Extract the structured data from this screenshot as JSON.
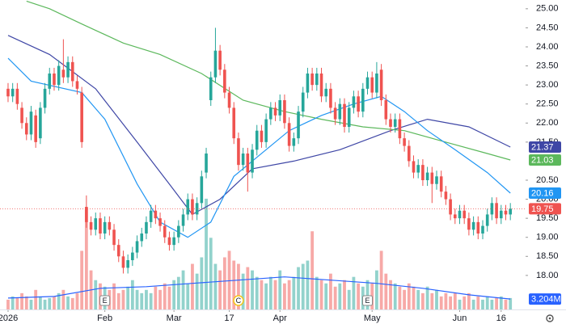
{
  "chart_data": {
    "type": "candlestick",
    "xlim": [
      -1.75,
      112.3
    ],
    "ylim": [
      17.17,
      25.23
    ],
    "volume_lim": [
      0,
      95
    ],
    "up_color": "#26a69a",
    "down_color": "#ef5350",
    "xticks": [
      {
        "value": 0,
        "label": "2026"
      },
      {
        "value": 21,
        "label": "Feb"
      },
      {
        "value": 36,
        "label": "Mar"
      },
      {
        "value": 48,
        "label": "17"
      },
      {
        "value": 59,
        "label": "Apr"
      },
      {
        "value": 79,
        "label": "May"
      },
      {
        "value": 98,
        "label": "Jun"
      },
      {
        "value": 107,
        "label": "16"
      }
    ],
    "yticks": [
      {
        "value": 18,
        "label": "18.00"
      },
      {
        "value": 18.5,
        "label": "18.50"
      },
      {
        "value": 19,
        "label": "19.00"
      },
      {
        "value": 19.5,
        "label": "19.50"
      },
      {
        "value": 20,
        "label": "20.00"
      },
      {
        "value": 20.5,
        "label": "20.50"
      },
      {
        "value": 21.5,
        "label": "21.50"
      },
      {
        "value": 22,
        "label": "22.00"
      },
      {
        "value": 22.5,
        "label": "22.50"
      },
      {
        "value": 23,
        "label": "23.00"
      },
      {
        "value": 23.5,
        "label": "23.50"
      },
      {
        "value": 24,
        "label": "24.00"
      },
      {
        "value": 24.5,
        "label": "24.50"
      },
      {
        "value": 25,
        "label": "25.00"
      }
    ],
    "open": [
      22.9,
      22.7,
      22.9,
      22.4,
      22.0,
      21.7,
      22.2,
      21.6,
      22.4,
      22.9,
      23.3,
      23.0,
      23.4,
      23.2,
      23.6,
      23.1,
      22.8,
      19.8,
      19.4,
      19.2,
      19.5,
      19.1,
      19.4,
      19.2,
      18.8,
      18.5,
      18.2,
      18.4,
      18.6,
      18.9,
      19.1,
      19.4,
      19.7,
      19.5,
      19.3,
      19.0,
      18.8,
      19.0,
      19.3,
      19.6,
      20.0,
      19.6,
      19.9,
      20.7,
      22.6,
      23.2,
      23.9,
      23.4,
      22.8,
      22.4,
      21.6,
      20.9,
      21.2,
      20.7,
      21.3,
      21.8,
      21.5,
      22.1,
      22.4,
      22.2,
      22.6,
      22.0,
      21.4,
      21.6,
      22.3,
      22.8,
      23.3,
      23.0,
      23.3,
      22.7,
      22.9,
      22.4,
      22.1,
      22.5,
      21.9,
      22.4,
      22.7,
      22.3,
      22.9,
      23.2,
      22.8,
      23.4,
      22.6,
      22.1,
      21.9,
      22.1,
      21.6,
      21.4,
      21.0,
      20.7,
      20.9,
      20.5,
      20.7,
      20.4,
      20.6,
      20.2,
      20.0,
      19.6,
      19.5,
      19.7,
      19.5,
      19.2,
      19.4,
      19.1,
      19.3,
      19.6,
      19.9,
      19.5,
      19.7,
      19.6
    ],
    "high": [
      23.05,
      23.05,
      23.05,
      22.55,
      22.15,
      22.45,
      22.35,
      22.55,
      23.05,
      23.45,
      23.45,
      23.65,
      24.2,
      23.75,
      23.75,
      23.25,
      22.95,
      20.1,
      19.55,
      19.65,
      19.65,
      19.55,
      19.55,
      19.35,
      18.95,
      18.65,
      18.55,
      18.75,
      19.05,
      19.25,
      19.55,
      19.85,
      19.85,
      19.65,
      19.45,
      19.15,
      19.15,
      19.45,
      19.75,
      20.15,
      20.15,
      20.05,
      20.75,
      21.35,
      23.35,
      24.5,
      24.05,
      23.55,
      22.95,
      22.55,
      21.75,
      21.35,
      21.35,
      21.45,
      21.95,
      21.95,
      22.25,
      22.55,
      22.55,
      22.75,
      22.75,
      22.15,
      21.75,
      22.45,
      22.95,
      23.45,
      23.45,
      23.45,
      23.45,
      23.05,
      23.05,
      22.55,
      22.65,
      22.65,
      22.55,
      22.85,
      22.85,
      23.05,
      23.35,
      23.35,
      23.6,
      23.55,
      22.75,
      22.25,
      22.25,
      22.25,
      21.75,
      21.55,
      21.15,
      21.05,
      21.05,
      20.85,
      20.85,
      20.75,
      20.75,
      20.35,
      20.15,
      19.75,
      19.85,
      19.85,
      19.65,
      19.55,
      19.55,
      19.45,
      19.75,
      20.05,
      20.05,
      19.85,
      19.85,
      19.9
    ],
    "low": [
      22.55,
      22.55,
      22.35,
      21.85,
      21.55,
      21.55,
      21.35,
      21.45,
      22.25,
      22.75,
      22.85,
      22.85,
      23.05,
      23.05,
      22.95,
      22.75,
      21.35,
      19.25,
      19.05,
      19.05,
      18.95,
      18.95,
      19.05,
      18.65,
      18.35,
      18.05,
      18.05,
      18.25,
      18.45,
      18.75,
      18.95,
      19.25,
      19.35,
      19.15,
      18.85,
      18.65,
      18.65,
      18.85,
      19.15,
      19.45,
      19.45,
      19.45,
      19.75,
      20.55,
      22.45,
      23.05,
      23.25,
      22.65,
      22.25,
      21.45,
      20.75,
      20.75,
      20.2,
      20.55,
      21.15,
      21.35,
      21.35,
      21.95,
      22.05,
      22.05,
      21.85,
      21.25,
      21.25,
      21.45,
      22.15,
      22.65,
      22.85,
      22.85,
      22.55,
      22.55,
      22.25,
      21.95,
      21.95,
      21.75,
      21.75,
      22.25,
      22.15,
      22.15,
      22.75,
      22.65,
      22.65,
      22.45,
      21.95,
      21.75,
      21.75,
      21.45,
      21.25,
      20.85,
      20.55,
      20.55,
      20.35,
      20.35,
      19.9,
      20.25,
      20.05,
      19.85,
      19.45,
      19.35,
      19.35,
      19.35,
      19.05,
      19.05,
      18.95,
      18.95,
      19.15,
      19.45,
      19.35,
      19.35,
      19.45,
      19.45
    ],
    "close": [
      22.7,
      22.9,
      22.5,
      22.0,
      21.7,
      22.3,
      21.5,
      22.4,
      22.9,
      23.3,
      23.0,
      23.5,
      23.2,
      23.6,
      23.1,
      22.9,
      21.5,
      19.4,
      19.2,
      19.5,
      19.1,
      19.4,
      19.2,
      18.8,
      18.5,
      18.2,
      18.4,
      18.6,
      18.9,
      19.1,
      19.4,
      19.7,
      19.5,
      19.3,
      19.0,
      18.8,
      19.0,
      19.3,
      19.6,
      20.0,
      19.6,
      19.9,
      20.6,
      21.2,
      23.2,
      23.9,
      23.4,
      22.8,
      22.4,
      21.6,
      20.9,
      21.2,
      20.7,
      21.3,
      21.8,
      21.5,
      22.1,
      22.4,
      22.2,
      22.6,
      22.0,
      21.4,
      21.6,
      22.3,
      22.8,
      23.3,
      23.0,
      23.3,
      22.7,
      22.9,
      22.4,
      22.1,
      22.5,
      21.9,
      22.4,
      22.7,
      22.3,
      22.9,
      23.2,
      22.8,
      23.3,
      22.6,
      22.1,
      21.9,
      22.1,
      21.6,
      21.4,
      21.0,
      20.7,
      20.9,
      20.5,
      20.7,
      20.4,
      20.6,
      20.2,
      20.0,
      19.6,
      19.5,
      19.7,
      19.5,
      19.2,
      19.4,
      19.1,
      19.3,
      19.6,
      19.9,
      19.5,
      19.7,
      19.6,
      19.75
    ],
    "close_label": "19.75",
    "volume": [
      3,
      4,
      3.5,
      5,
      4,
      3,
      6,
      4,
      3,
      3.5,
      4,
      5,
      6,
      4,
      3.5,
      5,
      18,
      31,
      12,
      9,
      8,
      7,
      6,
      8,
      5,
      6,
      7,
      9,
      6,
      5,
      6,
      5,
      7,
      6,
      8,
      7,
      9,
      10,
      12,
      8,
      14,
      11,
      16,
      34,
      22,
      14,
      12,
      16,
      18,
      15,
      14,
      11,
      13,
      12,
      10,
      9,
      8,
      10,
      9,
      12,
      8,
      9,
      10,
      13,
      14,
      15,
      24,
      10,
      9,
      8,
      11,
      7,
      8,
      9,
      6,
      10,
      8,
      7,
      9,
      8,
      12,
      18,
      11,
      9,
      8,
      7,
      6,
      8,
      7,
      6,
      5,
      7,
      5,
      6,
      4,
      5,
      4,
      5,
      3,
      4,
      5,
      3,
      4,
      3,
      4,
      3,
      3.5,
      4,
      3,
      3.5
    ],
    "series": [
      {
        "color": "#3f47a6",
        "x": [
          0,
          9,
          19,
          28,
          35,
          40,
          46,
          53,
          62,
          72,
          83,
          91,
          100,
          109
        ],
        "values": [
          24.3,
          23.8,
          22.9,
          21.5,
          20.4,
          19.6,
          20.0,
          20.8,
          21.0,
          21.3,
          21.8,
          22.1,
          21.9,
          21.37
        ],
        "last_label": "21.37"
      },
      {
        "color": "#5cb85c",
        "x": [
          4,
          9,
          16,
          25,
          33,
          42,
          51,
          60,
          68,
          77,
          86,
          95,
          104,
          109
        ],
        "values": [
          25.2,
          25.0,
          24.6,
          24.1,
          23.8,
          23.3,
          22.6,
          22.3,
          22.1,
          21.9,
          21.8,
          21.5,
          21.2,
          21.03
        ],
        "last_label": "21.03"
      },
      {
        "color": "#2196f3",
        "x": [
          0,
          5,
          16,
          21,
          28,
          33,
          39,
          44,
          49,
          54,
          61,
          68,
          75,
          81,
          86,
          91,
          97,
          104,
          109
        ],
        "values": [
          23.7,
          23.1,
          22.8,
          22.1,
          20.4,
          19.4,
          19.0,
          19.4,
          20.6,
          21.1,
          21.8,
          22.2,
          22.5,
          22.7,
          22.3,
          21.8,
          21.3,
          20.7,
          20.16
        ],
        "last_label": "20.16"
      },
      {
        "color": "#2962ff",
        "axis": "volume",
        "x": [
          0,
          10,
          20,
          30,
          40,
          50,
          60,
          70,
          80,
          90,
          100,
          109
        ],
        "values": [
          3.5,
          4.0,
          6.5,
          7.0,
          8.0,
          9.0,
          10.0,
          9.0,
          8.0,
          6.5,
          4.5,
          3.204
        ],
        "last_label": "3.204M"
      }
    ],
    "events": [
      {
        "x": 21,
        "label": "E"
      },
      {
        "x": 50,
        "label": "C"
      },
      {
        "x": 78,
        "label": "E"
      }
    ]
  }
}
